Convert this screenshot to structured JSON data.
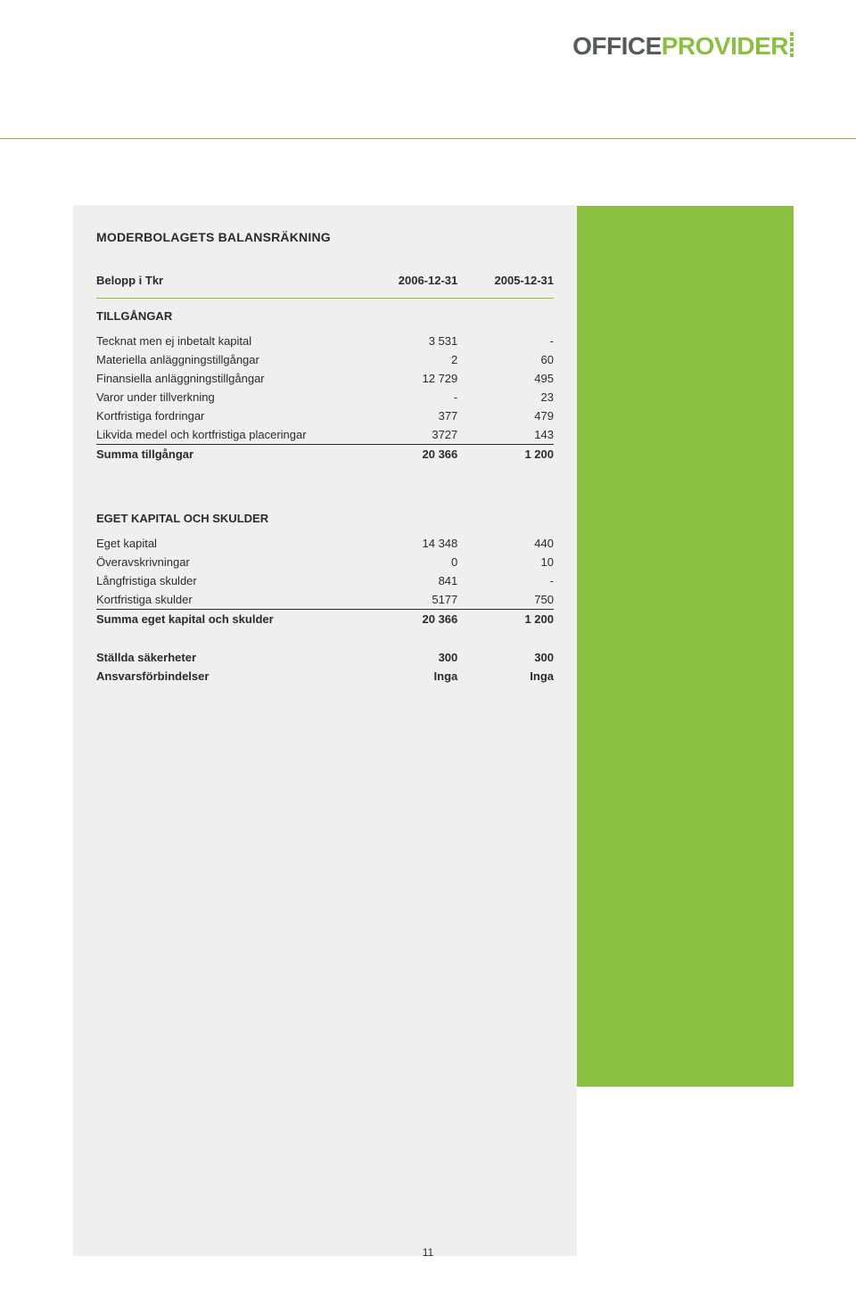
{
  "brand": {
    "word1": "OFFICE",
    "word2": "PROVIDER"
  },
  "colors": {
    "accent": "#8bbf3f",
    "dark_text": "#555a5d",
    "panel_bg": "#f0efed",
    "text": "#2b2b2b"
  },
  "page_number": "11",
  "balance": {
    "title": "MODERBOLAGETS BALANSRÄKNING",
    "header": {
      "label": "Belopp i Tkr",
      "col1": "2006-12-31",
      "col2": "2005-12-31"
    },
    "assets": {
      "section": "TILLGÅNGAR",
      "rows": [
        {
          "label": "Tecknat men ej inbetalt kapital",
          "v1": "3 531",
          "v2": "-"
        },
        {
          "label": "Materiella anläggningstillgångar",
          "v1": "2",
          "v2": "60"
        },
        {
          "label": "Finansiella anläggningstillgångar",
          "v1": "12 729",
          "v2": "495"
        },
        {
          "label": "Varor under tillverkning",
          "v1": "-",
          "v2": "23"
        },
        {
          "label": "Kortfristiga fordringar",
          "v1": "377",
          "v2": "479"
        },
        {
          "label": "Likvida medel och kortfristiga placeringar",
          "v1": "3727",
          "v2": "143"
        }
      ],
      "sum": {
        "label": "Summa tillgångar",
        "v1": "20 366",
        "v2": "1 200"
      }
    },
    "equity": {
      "section": "EGET KAPITAL OCH SKULDER",
      "rows": [
        {
          "label": "Eget kapital",
          "v1": "14 348",
          "v2": "440"
        },
        {
          "label": "Överavskrivningar",
          "v1": "0",
          "v2": "10"
        },
        {
          "label": "Långfristiga skulder",
          "v1": "841",
          "v2": "-"
        },
        {
          "label": "Kortfristiga skulder",
          "v1": "5177",
          "v2": "750"
        }
      ],
      "sum": {
        "label": "Summa eget kapital och skulder",
        "v1": "20 366",
        "v2": "1 200"
      }
    },
    "pledged": {
      "label": "Ställda säkerheter",
      "v1": "300",
      "v2": "300"
    },
    "contingent": {
      "label": "Ansvarsförbindelser",
      "v1": "Inga",
      "v2": "Inga"
    }
  }
}
